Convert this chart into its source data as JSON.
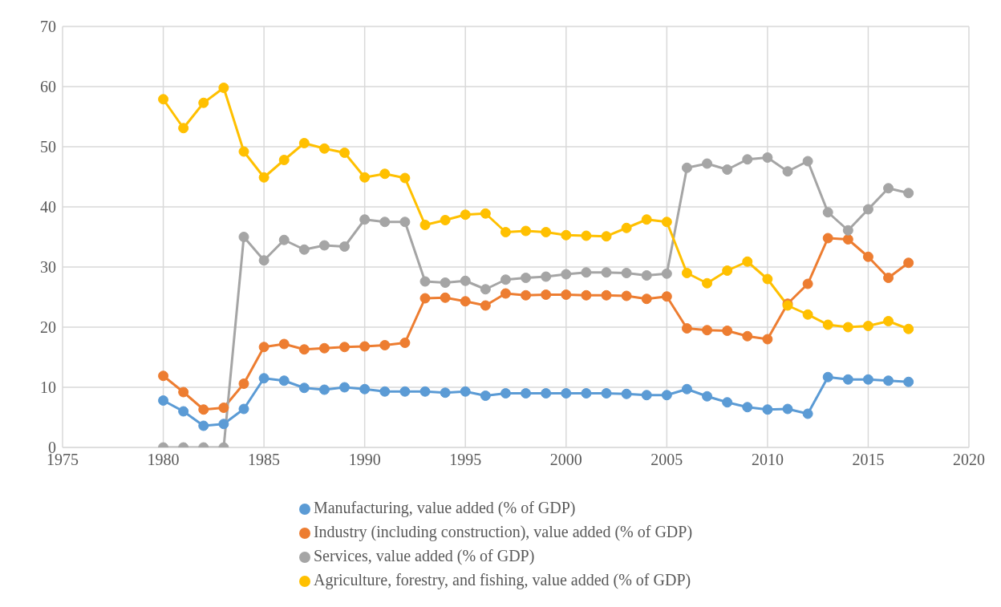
{
  "chart_data": {
    "type": "line",
    "x": [
      1980,
      1981,
      1982,
      1983,
      1984,
      1985,
      1986,
      1987,
      1988,
      1989,
      1990,
      1991,
      1992,
      1993,
      1994,
      1995,
      1996,
      1997,
      1998,
      1999,
      2000,
      2001,
      2002,
      2003,
      2004,
      2005,
      2006,
      2007,
      2008,
      2009,
      2010,
      2011,
      2012,
      2013,
      2014,
      2015,
      2016,
      2017
    ],
    "series": [
      {
        "name": "Manufacturing, value added (% of GDP)",
        "color": "#5b9bd5",
        "values": [
          7.8,
          6.0,
          3.6,
          3.9,
          6.4,
          11.5,
          11.1,
          9.9,
          9.6,
          10.0,
          9.7,
          9.3,
          9.3,
          9.3,
          9.1,
          9.3,
          8.6,
          9.0,
          9.0,
          9.0,
          9.0,
          9.0,
          9.0,
          8.9,
          8.7,
          8.7,
          9.7,
          8.5,
          7.5,
          6.7,
          6.3,
          6.4,
          5.6,
          11.7,
          11.3,
          11.3,
          11.1,
          10.9
        ]
      },
      {
        "name": "Industry (including construction), value added (% of GDP)",
        "color": "#ed7d31",
        "values": [
          11.9,
          9.2,
          6.3,
          6.6,
          10.6,
          16.7,
          17.2,
          16.3,
          16.5,
          16.7,
          16.8,
          17.0,
          17.4,
          24.8,
          24.9,
          24.3,
          23.6,
          25.6,
          25.3,
          25.4,
          25.4,
          25.3,
          25.3,
          25.2,
          24.7,
          25.1,
          19.8,
          19.5,
          19.4,
          18.5,
          18.0,
          23.9,
          27.2,
          34.8,
          34.6,
          31.7,
          28.2,
          30.7
        ]
      },
      {
        "name": "Services, value added (% of GDP)",
        "color": "#a5a5a5",
        "values": [
          0,
          0,
          0,
          0,
          35.0,
          31.1,
          34.5,
          32.9,
          33.6,
          33.4,
          37.9,
          37.5,
          37.5,
          27.6,
          27.4,
          27.7,
          26.3,
          27.9,
          28.2,
          28.4,
          28.8,
          29.1,
          29.1,
          29.0,
          28.6,
          28.9,
          46.5,
          47.2,
          46.2,
          47.9,
          48.2,
          45.9,
          47.6,
          39.1,
          36.1,
          39.6,
          43.1,
          42.3
        ]
      },
      {
        "name": "Agriculture, forestry, and fishing, value added (% of GDP)",
        "color": "#ffc000",
        "values": [
          57.9,
          53.1,
          57.3,
          59.8,
          49.2,
          44.9,
          47.8,
          50.6,
          49.7,
          49.0,
          44.9,
          45.5,
          44.8,
          37.0,
          37.8,
          38.7,
          38.9,
          35.8,
          36.0,
          35.8,
          35.3,
          35.2,
          35.1,
          36.5,
          37.9,
          37.5,
          29.0,
          27.3,
          29.4,
          30.9,
          28.0,
          23.6,
          22.1,
          20.4,
          20.0,
          20.2,
          21.0,
          19.7
        ]
      }
    ],
    "xlim": [
      1975,
      2020
    ],
    "xticks": [
      1975,
      1980,
      1985,
      1990,
      1995,
      2000,
      2005,
      2010,
      2015,
      2020
    ],
    "ylim": [
      0,
      70
    ],
    "yticks": [
      0,
      10,
      20,
      30,
      40,
      50,
      60,
      70
    ],
    "grid": true,
    "legend": "bottom",
    "marker": "circle",
    "line_style": "solid"
  }
}
